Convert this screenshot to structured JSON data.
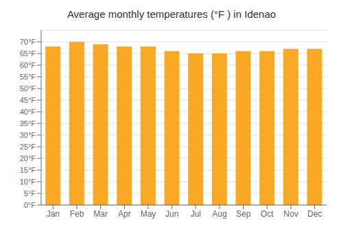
{
  "chart_data": {
    "type": "bar",
    "title": "Average monthly temperatures (°F ) in Idenao",
    "categories": [
      "Jan",
      "Feb",
      "Mar",
      "Apr",
      "May",
      "Jun",
      "Jul",
      "Aug",
      "Sep",
      "Oct",
      "Nov",
      "Dec"
    ],
    "values": [
      68,
      70,
      69,
      68,
      68,
      66,
      65,
      65,
      66,
      66,
      67,
      67
    ],
    "color": "#F9A825",
    "ylim": [
      0,
      75
    ],
    "yticks": [
      {
        "value": 0,
        "label": "0°F"
      },
      {
        "value": 5,
        "label": "5°F"
      },
      {
        "value": 10,
        "label": "10°F"
      },
      {
        "value": 15,
        "label": "15°F"
      },
      {
        "value": 20,
        "label": "20°F"
      },
      {
        "value": 25,
        "label": "25°F"
      },
      {
        "value": 30,
        "label": "30°F"
      },
      {
        "value": 35,
        "label": "35°F"
      },
      {
        "value": 40,
        "label": "40°F"
      },
      {
        "value": 45,
        "label": "45°F"
      },
      {
        "value": 50,
        "label": "50°F"
      },
      {
        "value": 55,
        "label": "55°F"
      },
      {
        "value": 60,
        "label": "60°F"
      },
      {
        "value": 65,
        "label": "65°F"
      },
      {
        "value": 70,
        "label": "70°F"
      }
    ],
    "grid": true
  }
}
